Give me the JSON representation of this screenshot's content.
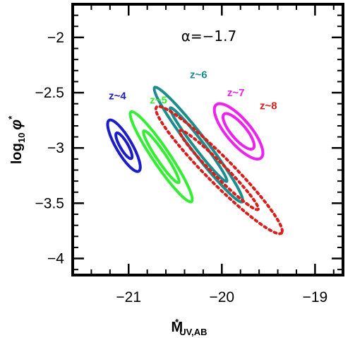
{
  "chart_data": {
    "type": "contour",
    "xlabel": "M",
    "xlabel_sup": "*",
    "xlabel_sub": "UV,AB",
    "ylabel": "log",
    "ylabel_sub": "10",
    "ylabel_symbol": "φ",
    "ylabel_sup": "*",
    "annotation": "α=−1.7",
    "xlim": [
      -21.6,
      -18.7
    ],
    "ylim": [
      -4.15,
      -1.7
    ],
    "x_ticks": [
      -21,
      -20,
      -19
    ],
    "x_tick_labels": [
      "−21",
      "−20",
      "−19"
    ],
    "y_ticks": [
      -2,
      -2.5,
      -3,
      -3.5,
      -4
    ],
    "y_tick_labels": [
      "−2",
      "−2.5",
      "−3",
      "−3.5",
      "−4"
    ],
    "grid": false,
    "series": [
      {
        "name": "z~4",
        "color": "#1c1cc8",
        "style": "solid",
        "label_pos": [
          -21.12,
          -2.56
        ],
        "center": [
          -21.05,
          -2.98
        ],
        "contours": [
          {
            "semi_major": 0.28,
            "semi_minor": 0.085,
            "slope": -1.45
          },
          {
            "semi_major": 0.14,
            "semi_minor": 0.042,
            "slope": -1.45
          }
        ]
      },
      {
        "name": "z~5",
        "color": "#33ee33",
        "style": "solid",
        "label_pos": [
          -20.68,
          -2.6
        ],
        "center": [
          -20.65,
          -3.08
        ],
        "contours": [
          {
            "semi_major": 0.52,
            "semi_minor": 0.09,
            "slope": -1.25
          },
          {
            "semi_major": 0.3,
            "semi_minor": 0.05,
            "slope": -1.25
          }
        ]
      },
      {
        "name": "z~6",
        "color": "#1c8c8c",
        "style": "solid",
        "label_pos": [
          -20.25,
          -2.37
        ],
        "center": [
          -20.25,
          -2.97
        ],
        "contours": [
          {
            "semi_major": 0.7,
            "semi_minor": 0.09,
            "slope": -1.1
          },
          {
            "semi_major": 0.45,
            "semi_minor": 0.05,
            "slope": -1.1
          }
        ]
      },
      {
        "name": "z~7",
        "color": "#ee22ee",
        "style": "solid",
        "label_pos": [
          -19.85,
          -2.53
        ],
        "center": [
          -19.82,
          -2.85
        ],
        "contours": [
          {
            "semi_major": 0.34,
            "semi_minor": 0.13,
            "slope": -1.0
          },
          {
            "semi_major": 0.22,
            "semi_minor": 0.08,
            "slope": -1.0
          }
        ]
      },
      {
        "name": "z~8",
        "color": "#dd1c1c",
        "style": "dotted",
        "label_pos": [
          -19.5,
          -2.65
        ],
        "center": [
          -20.03,
          -3.2
        ],
        "contours": [
          {
            "semi_major": 0.88,
            "semi_minor": 0.14,
            "slope": -0.85
          },
          {
            "semi_major": 0.55,
            "semi_minor": 0.07,
            "slope": -0.85
          }
        ]
      }
    ]
  }
}
